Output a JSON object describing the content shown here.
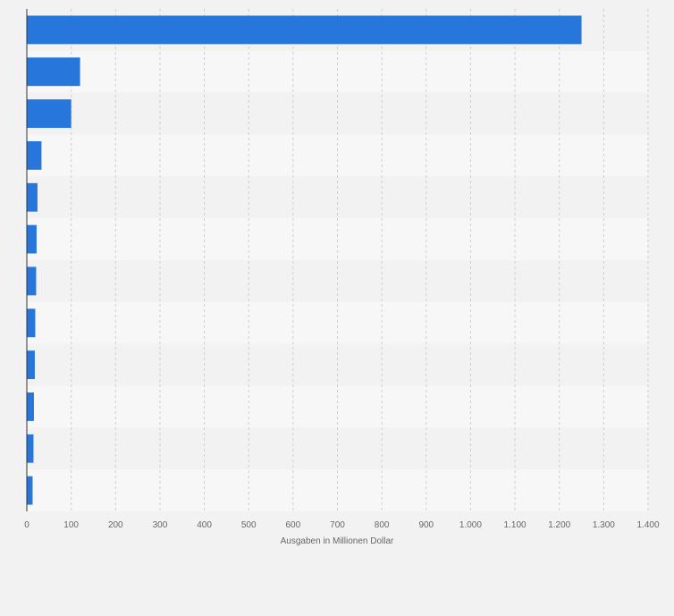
{
  "chart_data": {
    "type": "bar",
    "orientation": "horizontal",
    "title": "",
    "xlabel": "Ausgaben in Millionen Dollar",
    "ylabel": "",
    "xlim": [
      0,
      1400
    ],
    "x_ticks": [
      0,
      100,
      200,
      300,
      400,
      500,
      600,
      700,
      800,
      900,
      1000,
      1100,
      1200,
      1300,
      1400
    ],
    "x_tick_labels": [
      "0",
      "100",
      "200",
      "300",
      "400",
      "500",
      "600",
      "700",
      "800",
      "900",
      "1.000",
      "1.100",
      "1.200",
      "1.300",
      "1.400"
    ],
    "categories": [
      "",
      "",
      "",
      "",
      "",
      "",
      "",
      "",
      "",
      "",
      "",
      ""
    ],
    "values": [
      1250,
      120,
      100,
      33,
      24,
      22,
      21,
      19,
      18,
      16,
      15,
      13
    ],
    "grid": "vertical",
    "colors": {
      "bar": "#2676dc",
      "background": "#f2f2f2",
      "band_light": "#f7f7f7",
      "band_dark": "#f2f2f2",
      "grid": "#cfcfcf",
      "axis": "#333333",
      "text": "#666666"
    }
  }
}
